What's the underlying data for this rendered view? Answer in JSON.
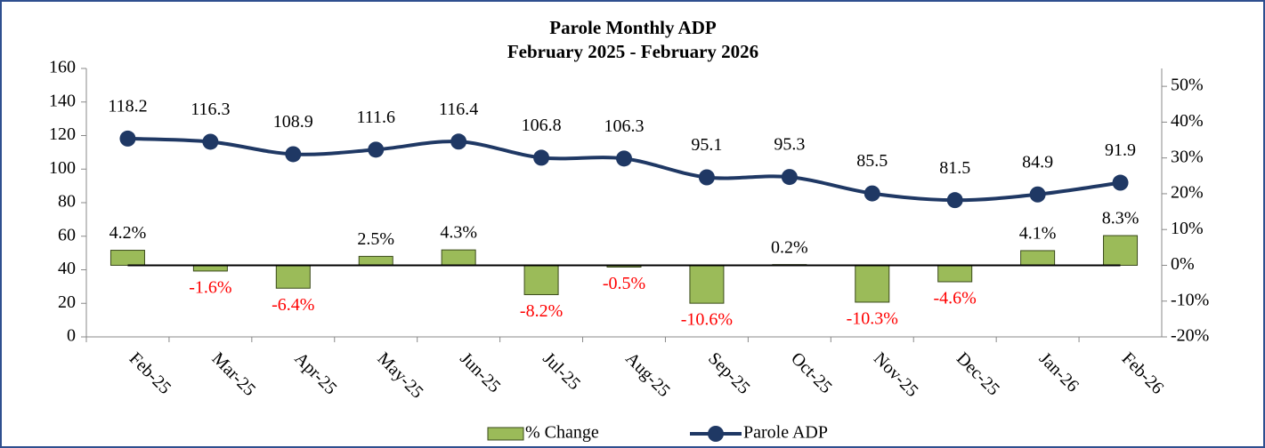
{
  "chart_data": {
    "type": "bar-line",
    "title": "Parole Monthly ADP",
    "subtitle": "February 2025 - February 2026",
    "categories": [
      "Feb-25",
      "Mar-25",
      "Apr-25",
      "May-25",
      "Jun-25",
      "Jul-25",
      "Aug-25",
      "Sep-25",
      "Oct-25",
      "Nov-25",
      "Dec-25",
      "Jan-26",
      "Feb-26"
    ],
    "series": [
      {
        "name": "% Change",
        "type": "bar",
        "axis": "y2",
        "color": "#9bbb59",
        "negative_label_color": "#ff0000",
        "values": [
          4.2,
          -1.6,
          -6.4,
          2.5,
          4.3,
          -8.2,
          -0.5,
          -10.6,
          0.2,
          -10.3,
          -4.6,
          4.1,
          8.3
        ],
        "value_labels": [
          "4.2%",
          "-1.6%",
          "-6.4%",
          "2.5%",
          "4.3%",
          "-8.2%",
          "-0.5%",
          "-10.6%",
          "0.2%",
          "-10.3%",
          "-4.6%",
          "4.1%",
          "8.3%"
        ]
      },
      {
        "name": "Parole ADP",
        "type": "line",
        "color": "#1f3864",
        "values": [
          118.2,
          116.3,
          108.9,
          111.6,
          116.4,
          106.8,
          106.3,
          95.1,
          95.3,
          85.5,
          81.5,
          84.9,
          91.9
        ]
      }
    ],
    "ylim": [
      0,
      160
    ],
    "yticks": [
      0,
      20,
      40,
      60,
      80,
      100,
      120,
      140,
      160
    ],
    "y2lim": [
      -20,
      55
    ],
    "y2ticks": [
      {
        "value": -20,
        "label": "-20%"
      },
      {
        "value": -10,
        "label": "-10%"
      },
      {
        "value": 0,
        "label": "0%"
      },
      {
        "value": 10,
        "label": "10%"
      },
      {
        "value": 20,
        "label": "20%"
      },
      {
        "value": 30,
        "label": "30%"
      },
      {
        "value": 40,
        "label": "40%"
      },
      {
        "value": 50,
        "label": "50%"
      }
    ],
    "legend": "bottom"
  }
}
